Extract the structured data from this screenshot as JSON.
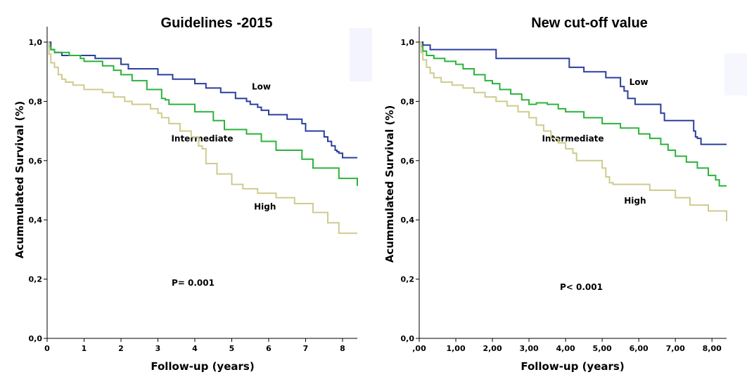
{
  "chart_data": [
    {
      "type": "line",
      "chart_kind": "kaplan-meier survival curve",
      "title": "Guidelines -2015",
      "xlabel": "Follow-up (years)",
      "ylabel": "Acummulated Survival (%)",
      "xlim": [
        0,
        8.4
      ],
      "ylim": [
        0,
        1.0
      ],
      "x_ticks": [
        0,
        1,
        2,
        3,
        4,
        5,
        6,
        7,
        8
      ],
      "x_tick_labels": [
        "0",
        "1",
        "2",
        "3",
        "4",
        "5",
        "6",
        "7",
        "8"
      ],
      "y_ticks": [
        0,
        0.2,
        0.4,
        0.6,
        0.8,
        1.0
      ],
      "y_tick_labels": [
        "0,0",
        "0,2",
        "0,4",
        "0,6",
        "0,8",
        "1,0"
      ],
      "grid": false,
      "annotation": "P= 0.001",
      "series": [
        {
          "name": "Low",
          "color": "#2b3f9e",
          "label_at": [
            5.8,
            0.84
          ],
          "x": [
            0,
            0.1,
            0.2,
            0.4,
            1.0,
            1.3,
            1.4,
            2.0,
            2.2,
            3.0,
            3.4,
            4.0,
            4.3,
            4.7,
            5.1,
            5.4,
            5.5,
            5.7,
            5.8,
            6.0,
            6.5,
            6.9,
            7.0,
            7.5,
            7.6,
            7.7,
            7.8,
            7.85,
            7.9,
            8.0,
            8.4
          ],
          "y": [
            1.0,
            0.975,
            0.965,
            0.955,
            0.955,
            0.945,
            0.945,
            0.925,
            0.91,
            0.89,
            0.875,
            0.86,
            0.845,
            0.83,
            0.81,
            0.8,
            0.79,
            0.78,
            0.77,
            0.755,
            0.74,
            0.725,
            0.7,
            0.68,
            0.665,
            0.65,
            0.635,
            0.63,
            0.625,
            0.61,
            0.61
          ]
        },
        {
          "name": "Intermediate",
          "color": "#2bb33a",
          "label_at": [
            4.2,
            0.665
          ],
          "x": [
            0,
            0.05,
            0.1,
            0.2,
            0.6,
            0.9,
            1.0,
            1.5,
            1.8,
            2.0,
            2.3,
            2.7,
            3.1,
            3.2,
            3.3,
            4.0,
            4.5,
            4.8,
            5.4,
            5.8,
            6.2,
            6.9,
            7.2,
            7.9,
            8.4
          ],
          "y": [
            1.0,
            0.985,
            0.975,
            0.965,
            0.955,
            0.945,
            0.935,
            0.92,
            0.905,
            0.89,
            0.87,
            0.84,
            0.81,
            0.805,
            0.79,
            0.765,
            0.735,
            0.705,
            0.69,
            0.665,
            0.635,
            0.605,
            0.575,
            0.54,
            0.515
          ]
        },
        {
          "name": "High",
          "color": "#cfcb8e",
          "label_at": [
            5.9,
            0.435
          ],
          "x": [
            0,
            0.05,
            0.1,
            0.2,
            0.3,
            0.4,
            0.5,
            0.7,
            1.0,
            1.2,
            1.5,
            1.8,
            2.1,
            2.3,
            2.8,
            3.0,
            3.1,
            3.3,
            3.6,
            3.9,
            4.1,
            4.2,
            4.3,
            4.6,
            5.0,
            5.3,
            5.7,
            6.2,
            6.7,
            7.2,
            7.6,
            7.9,
            8.4
          ],
          "y": [
            1.0,
            0.96,
            0.93,
            0.915,
            0.89,
            0.875,
            0.865,
            0.855,
            0.84,
            0.84,
            0.83,
            0.815,
            0.8,
            0.79,
            0.775,
            0.76,
            0.745,
            0.725,
            0.7,
            0.68,
            0.65,
            0.64,
            0.59,
            0.555,
            0.52,
            0.505,
            0.49,
            0.475,
            0.455,
            0.425,
            0.39,
            0.355,
            0.355
          ]
        }
      ]
    },
    {
      "type": "line",
      "chart_kind": "kaplan-meier survival curve",
      "title": "New cut-off value",
      "xlabel": "Follow-up (years)",
      "ylabel": "Acummulated Survival (%)",
      "xlim": [
        0,
        8.4
      ],
      "ylim": [
        0,
        1.0
      ],
      "x_ticks": [
        0,
        1,
        2,
        3,
        4,
        5,
        6,
        7,
        8
      ],
      "x_tick_labels": [
        ",00",
        "1,00",
        "2,00",
        "3,00",
        "4,00",
        "5,00",
        "6,00",
        "7,00",
        "8,00"
      ],
      "y_ticks": [
        0,
        0.2,
        0.4,
        0.6,
        0.8,
        1.0
      ],
      "y_tick_labels": [
        "0,0",
        "0,2",
        "0,4",
        "0,6",
        "0,8",
        "1,0"
      ],
      "grid": false,
      "annotation": "P< 0.001",
      "series": [
        {
          "name": "Low",
          "color": "#2b3f9e",
          "label_at": [
            6.0,
            0.855
          ],
          "x": [
            0,
            0.1,
            0.3,
            1.8,
            2.1,
            3.9,
            4.1,
            4.5,
            5.1,
            5.5,
            5.6,
            5.7,
            5.9,
            6.6,
            6.7,
            7.2,
            7.5,
            7.55,
            7.6,
            7.7,
            8.4
          ],
          "y": [
            1.0,
            0.99,
            0.975,
            0.975,
            0.945,
            0.945,
            0.915,
            0.9,
            0.88,
            0.85,
            0.835,
            0.81,
            0.79,
            0.76,
            0.735,
            0.735,
            0.7,
            0.68,
            0.675,
            0.655,
            0.655
          ]
        },
        {
          "name": "Intermediate",
          "color": "#2bb33a",
          "label_at": [
            4.2,
            0.665
          ],
          "x": [
            0,
            0.05,
            0.1,
            0.2,
            0.4,
            0.7,
            1.0,
            1.2,
            1.5,
            1.8,
            2.0,
            2.2,
            2.5,
            2.8,
            3.0,
            3.2,
            3.5,
            3.8,
            4.0,
            4.5,
            5.0,
            5.5,
            6.0,
            6.3,
            6.6,
            6.8,
            7.0,
            7.3,
            7.6,
            7.9,
            8.1,
            8.2,
            8.4
          ],
          "y": [
            1.0,
            0.985,
            0.97,
            0.955,
            0.945,
            0.935,
            0.925,
            0.91,
            0.89,
            0.87,
            0.86,
            0.84,
            0.825,
            0.805,
            0.79,
            0.795,
            0.79,
            0.775,
            0.765,
            0.745,
            0.725,
            0.71,
            0.69,
            0.675,
            0.655,
            0.635,
            0.615,
            0.595,
            0.575,
            0.55,
            0.535,
            0.515,
            0.515
          ]
        },
        {
          "name": "High",
          "color": "#cfcb8e",
          "label_at": [
            5.9,
            0.455
          ],
          "x": [
            0,
            0.05,
            0.1,
            0.2,
            0.3,
            0.4,
            0.6,
            0.9,
            1.2,
            1.5,
            1.8,
            2.1,
            2.4,
            2.7,
            3.0,
            3.2,
            3.4,
            3.6,
            3.8,
            4.0,
            4.2,
            4.3,
            4.5,
            5.0,
            5.1,
            5.2,
            5.3,
            5.8,
            6.3,
            7.0,
            7.4,
            7.9,
            8.4
          ],
          "y": [
            1.0,
            0.965,
            0.94,
            0.915,
            0.895,
            0.88,
            0.865,
            0.855,
            0.845,
            0.83,
            0.815,
            0.8,
            0.785,
            0.765,
            0.745,
            0.72,
            0.7,
            0.675,
            0.66,
            0.64,
            0.625,
            0.6,
            0.6,
            0.575,
            0.545,
            0.525,
            0.52,
            0.52,
            0.5,
            0.475,
            0.45,
            0.43,
            0.395
          ]
        }
      ]
    }
  ]
}
